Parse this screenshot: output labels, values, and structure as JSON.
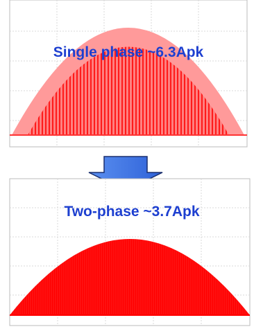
{
  "labels": {
    "top": "Single phase ~6.3Apk",
    "bottom": "Two-phase ~3.7Apk"
  }
}
